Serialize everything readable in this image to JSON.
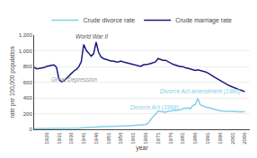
{
  "chart_data": {
    "type": "line",
    "xlabel": "year",
    "ylabel": "rate per 100,000 population",
    "x": [
      1921,
      1922,
      1923,
      1924,
      1925,
      1926,
      1927,
      1928,
      1929,
      1930,
      1931,
      1932,
      1933,
      1934,
      1935,
      1936,
      1937,
      1938,
      1939,
      1940,
      1941,
      1942,
      1943,
      1944,
      1945,
      1946,
      1947,
      1948,
      1949,
      1950,
      1951,
      1952,
      1953,
      1954,
      1955,
      1956,
      1957,
      1958,
      1959,
      1960,
      1961,
      1962,
      1963,
      1964,
      1965,
      1966,
      1967,
      1968,
      1969,
      1970,
      1971,
      1972,
      1973,
      1974,
      1975,
      1976,
      1977,
      1978,
      1979,
      1980,
      1981,
      1982,
      1983,
      1984,
      1985,
      1986,
      1987,
      1988,
      1989,
      1990,
      1991,
      1992,
      1993,
      1994,
      1995,
      1996,
      1997,
      1998,
      1999,
      2000,
      2001,
      2002,
      2003,
      2004,
      2005,
      2006
    ],
    "series": [
      {
        "name": "Crude divorce rate",
        "color": "#87ceeb",
        "values": [
          8,
          8,
          8,
          8,
          9,
          9,
          9,
          10,
          10,
          10,
          11,
          11,
          11,
          12,
          12,
          12,
          13,
          14,
          14,
          18,
          20,
          22,
          24,
          26,
          30,
          35,
          38,
          36,
          35,
          34,
          36,
          36,
          37,
          37,
          37,
          38,
          40,
          42,
          43,
          45,
          46,
          48,
          50,
          52,
          55,
          60,
          80,
          124,
          162,
          192,
          232,
          226,
          222,
          218,
          228,
          232,
          238,
          236,
          242,
          248,
          262,
          268,
          272,
          262,
          302,
          315,
          392,
          312,
          296,
          286,
          276,
          272,
          262,
          252,
          242,
          238,
          232,
          232,
          226,
          232,
          226,
          226,
          222,
          226,
          222,
          222
        ]
      },
      {
        "name": "Crude marriage rate",
        "color": "#1a1a7e",
        "values": [
          790,
          770,
          775,
          778,
          785,
          800,
          810,
          815,
          820,
          790,
          640,
          605,
          615,
          650,
          680,
          710,
          740,
          762,
          795,
          860,
          1080,
          1005,
          970,
          930,
          962,
          1110,
          980,
          920,
          900,
          890,
          878,
          868,
          868,
          858,
          858,
          868,
          858,
          850,
          840,
          828,
          820,
          818,
          810,
          800,
          820,
          820,
          828,
          838,
          850,
          858,
          900,
          888,
          878,
          878,
          858,
          840,
          828,
          818,
          808,
          798,
          798,
          782,
          778,
          768,
          758,
          748,
          758,
          752,
          742,
          732,
          718,
          702,
          678,
          658,
          638,
          618,
          598,
          578,
          568,
          552,
          538,
          528,
          512,
          502,
          492,
          478
        ]
      }
    ],
    "xlim": [
      1921,
      2008
    ],
    "xticks": [
      1926,
      1931,
      1936,
      1941,
      1946,
      1951,
      1956,
      1961,
      1966,
      1971,
      1976,
      1981,
      1986,
      1991,
      1996,
      2001,
      2006
    ],
    "ylim": [
      0,
      1200
    ],
    "yticks": [
      0,
      200,
      400,
      600,
      800,
      {
        "value": 1000,
        "label": "1,000"
      },
      {
        "value": 1200,
        "label": "1,200"
      }
    ],
    "grid": "y",
    "legend": "top",
    "annotations": [
      {
        "text": "Great Depression",
        "x": 1927,
        "y": 555,
        "color": "#999999"
      },
      {
        "text": "World War II",
        "x": 1937,
        "y": 1120,
        "color": "#555555"
      },
      {
        "text": "Divorce Act (1968)",
        "x": 1959,
        "y": 210,
        "color": "#87ceeb"
      },
      {
        "text": "Divorce Act amendment (1986)",
        "x": 1971,
        "y": 415,
        "color": "#87ceeb"
      }
    ]
  }
}
